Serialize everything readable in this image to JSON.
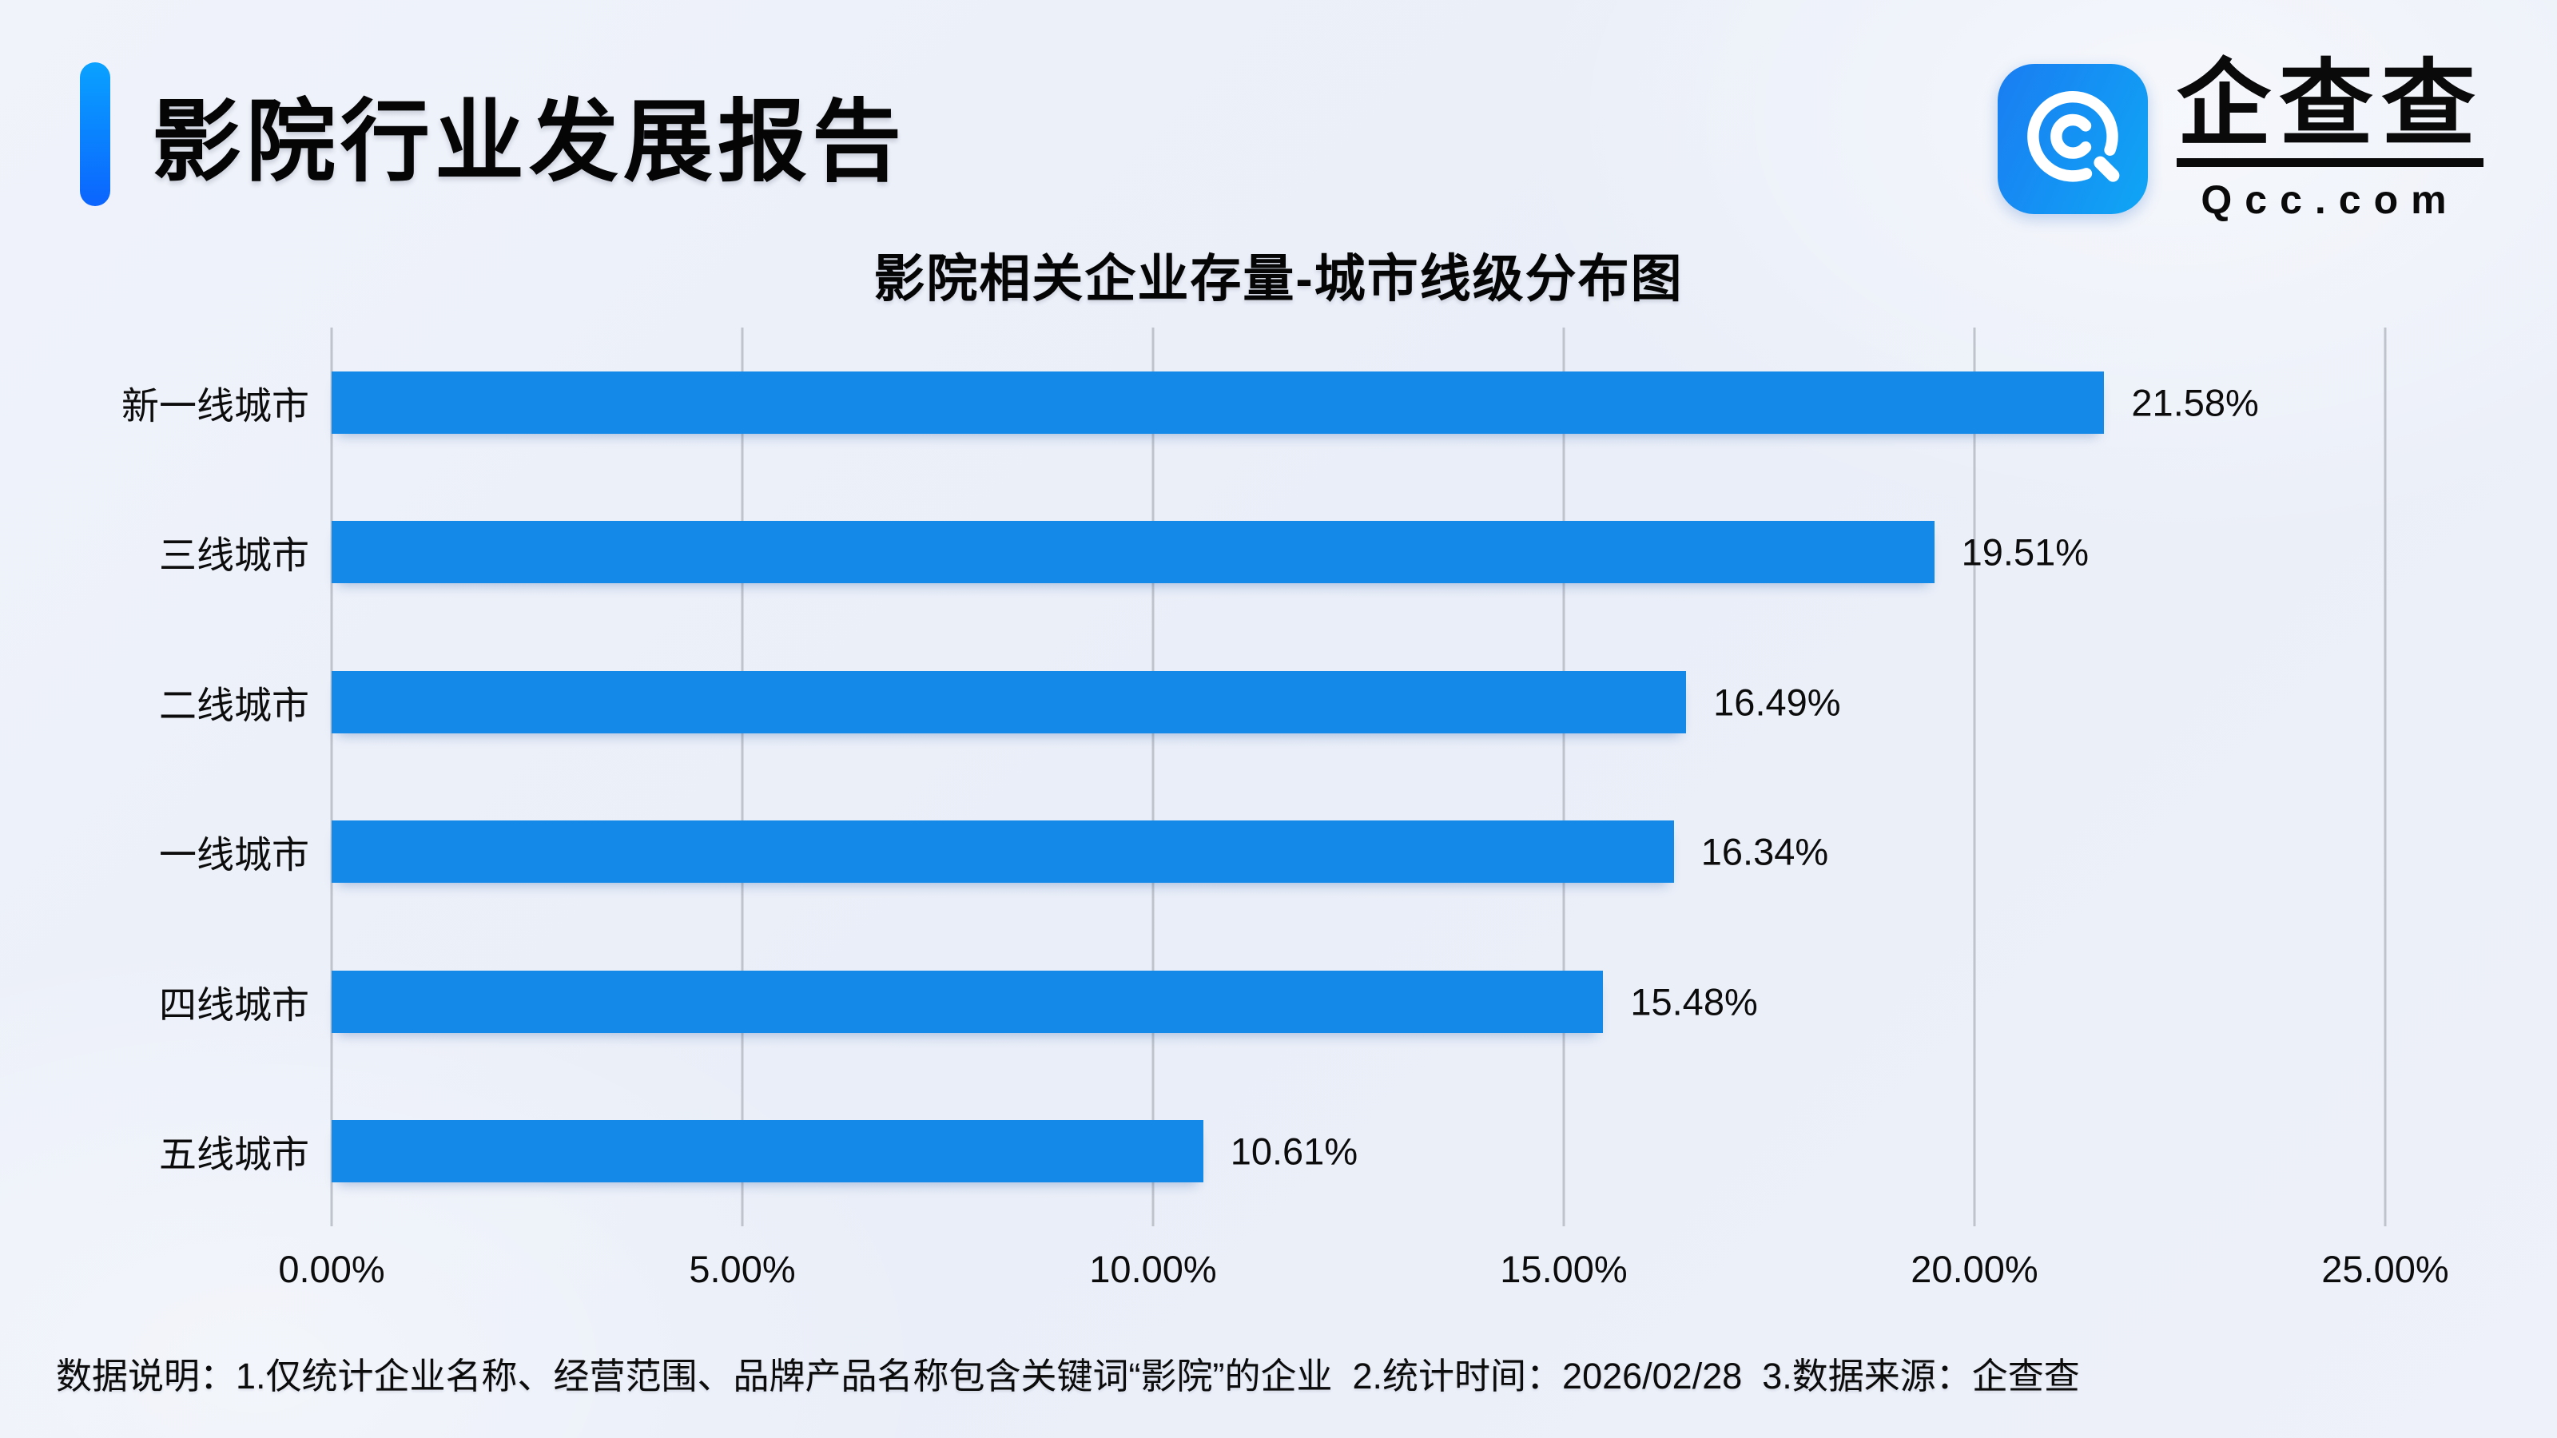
{
  "header": {
    "title": "影院行业发展报告",
    "accent_color_top": "#0aa2ff",
    "accent_color_bottom": "#0b64fe"
  },
  "logo": {
    "brand_text": "企查查",
    "domain_text": "Qcc.com",
    "icon_gradient_start": "#1a7df2",
    "icon_gradient_end": "#0fa6f5"
  },
  "chart_data": {
    "type": "bar",
    "orientation": "horizontal",
    "title": "影院相关企业存量-城市线级分布图",
    "categories": [
      "新一线城市",
      "三线城市",
      "二线城市",
      "一线城市",
      "四线城市",
      "五线城市"
    ],
    "values": [
      21.58,
      19.51,
      16.49,
      16.34,
      15.48,
      10.61
    ],
    "value_labels": [
      "21.58%",
      "19.51%",
      "16.49%",
      "16.34%",
      "15.48%",
      "10.61%"
    ],
    "x_ticks": [
      "0.00%",
      "5.00%",
      "10.00%",
      "15.00%",
      "20.00%",
      "25.00%"
    ],
    "xlim": [
      0,
      25
    ],
    "grid": true,
    "legend": "none",
    "bar_color": "#1589e8",
    "gridline_color": "#bfc3cb"
  },
  "footnote": {
    "text": "数据说明：1.仅统计企业名称、经营范围、品牌产品名称包含关键词“影院”的企业  2.统计时间：2026/02/28  3.数据来源：企查查"
  }
}
